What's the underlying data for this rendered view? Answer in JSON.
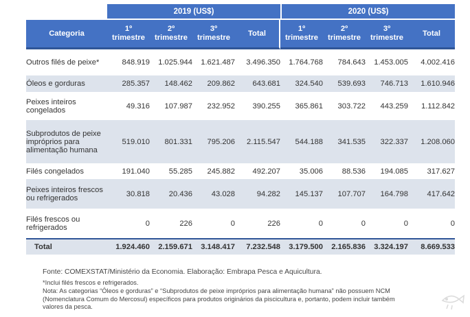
{
  "header": {
    "category_label": "Categoria",
    "year1": "2019 (US$)",
    "year2": "2020 (US$)",
    "q1_num": "1º",
    "q2_num": "2º",
    "q3_num": "3º",
    "quarter_word": "trimestre",
    "total_label": "Total"
  },
  "rows": [
    {
      "category": "Outros filés de peixe*",
      "values": [
        "848.919",
        "1.025.944",
        "1.621.487",
        "3.496.350",
        "1.764.768",
        "784.643",
        "1.453.005",
        "4.002.416"
      ]
    },
    {
      "category": "Óleos e gorduras",
      "values": [
        "285.357",
        "148.462",
        "209.862",
        "643.681",
        "324.540",
        "539.693",
        "746.713",
        "1.610.946"
      ]
    },
    {
      "category": "Peixes inteiros congelados",
      "values": [
        "49.316",
        "107.987",
        "232.952",
        "390.255",
        "365.861",
        "303.722",
        "443.259",
        "1.112.842"
      ]
    },
    {
      "category": "Subprodutos de peixe impróprios para alimentação humana",
      "values": [
        "519.010",
        "801.331",
        "795.206",
        "2.115.547",
        "544.188",
        "341.535",
        "322.337",
        "1.208.060"
      ]
    },
    {
      "category": "Filés congelados",
      "values": [
        "191.040",
        "55.285",
        "245.882",
        "492.207",
        "35.006",
        "88.536",
        "194.085",
        "317.627"
      ]
    },
    {
      "category": "Peixes inteiros frescos ou refrigerados",
      "values": [
        "30.818",
        "20.436",
        "43.028",
        "94.282",
        "145.137",
        "107.707",
        "164.798",
        "417.642"
      ]
    },
    {
      "category": "Filés frescos ou refrigerados",
      "values": [
        "0",
        "226",
        "0",
        "226",
        "0",
        "0",
        "0",
        "0"
      ]
    }
  ],
  "total_row": {
    "label": "Total",
    "values": [
      "1.924.460",
      "2.159.671",
      "3.148.417",
      "7.232.548",
      "3.179.500",
      "2.165.836",
      "3.324.197",
      "8.669.533"
    ]
  },
  "notes": {
    "source": "Fonte: COMEXSTAT/Ministério da Economia. Elaboração: Embrapa Pesca e Aquicultura.",
    "note1": "*Inclui filés frescos e refrigerados.",
    "note2": "Nota: As categorias “Óleos e gorduras” e “Subprodutos de peixe impróprios para alimentação humana” não possuem NCM (Nomenclatura Comum do Mercosul) específicos para produtos originários da piscicultura e, portanto, podem incluir também valores da pesca."
  },
  "colors": {
    "header_blue": "#4472c4",
    "row_shade": "#dde3ec",
    "rule_dark": "#2f5597"
  }
}
